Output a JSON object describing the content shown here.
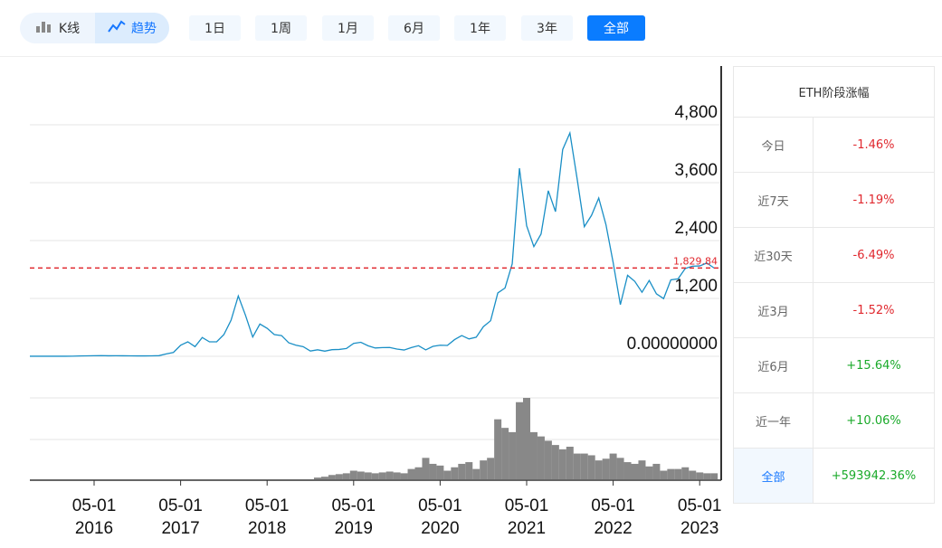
{
  "toolbar": {
    "view_toggle": [
      {
        "label": "K线",
        "icon": "candlestick-icon"
      },
      {
        "label": "趋势",
        "icon": "trend-line-icon",
        "active": true
      }
    ],
    "ranges": [
      {
        "label": "1日"
      },
      {
        "label": "1周"
      },
      {
        "label": "1月"
      },
      {
        "label": "6月"
      },
      {
        "label": "1年"
      },
      {
        "label": "3年"
      },
      {
        "label": "全部",
        "active": true
      }
    ],
    "accent": "#0a7cff"
  },
  "chart_data": {
    "type": "line",
    "y_ticks": [
      "4,800",
      "3,600",
      "2,400",
      "1,200",
      "0.00000000"
    ],
    "y_tick_values": [
      4800,
      3600,
      2400,
      1200,
      0
    ],
    "ylim": [
      0,
      5100
    ],
    "x_ticks": [
      {
        "md": "05-01",
        "year": "2016"
      },
      {
        "md": "05-01",
        "year": "2017"
      },
      {
        "md": "05-01",
        "year": "2018"
      },
      {
        "md": "05-01",
        "year": "2019"
      },
      {
        "md": "05-01",
        "year": "2020"
      },
      {
        "md": "05-01",
        "year": "2021"
      },
      {
        "md": "05-01",
        "year": "2022"
      },
      {
        "md": "05-01",
        "year": "2023"
      }
    ],
    "current_price_label": "1,829.84",
    "current_price": 1829.84,
    "line_color": "#1a8fc6",
    "price_line_color": "#e0282e",
    "volume_color": "#888888",
    "grid": true,
    "x": [
      "2015-08",
      "2015-09",
      "2015-10",
      "2015-11",
      "2015-12",
      "2016-01",
      "2016-02",
      "2016-03",
      "2016-04",
      "2016-05",
      "2016-06",
      "2016-07",
      "2016-08",
      "2016-09",
      "2016-10",
      "2016-11",
      "2016-12",
      "2017-01",
      "2017-02",
      "2017-03",
      "2017-04",
      "2017-05",
      "2017-06",
      "2017-07",
      "2017-08",
      "2017-09",
      "2017-10",
      "2017-11",
      "2017-12",
      "2018-01",
      "2018-02",
      "2018-03",
      "2018-04",
      "2018-05",
      "2018-06",
      "2018-07",
      "2018-08",
      "2018-09",
      "2018-10",
      "2018-11",
      "2018-12",
      "2019-01",
      "2019-02",
      "2019-03",
      "2019-04",
      "2019-05",
      "2019-06",
      "2019-07",
      "2019-08",
      "2019-09",
      "2019-10",
      "2019-11",
      "2019-12",
      "2020-01",
      "2020-02",
      "2020-03",
      "2020-04",
      "2020-05",
      "2020-06",
      "2020-07",
      "2020-08",
      "2020-09",
      "2020-10",
      "2020-11",
      "2020-12",
      "2021-01",
      "2021-02",
      "2021-03",
      "2021-04",
      "2021-05",
      "2021-06",
      "2021-07",
      "2021-08",
      "2021-09",
      "2021-10",
      "2021-11",
      "2021-12",
      "2022-01",
      "2022-02",
      "2022-03",
      "2022-04",
      "2022-05",
      "2022-06",
      "2022-07",
      "2022-08",
      "2022-09",
      "2022-10",
      "2022-11",
      "2022-12",
      "2023-01",
      "2023-02",
      "2023-03",
      "2023-04",
      "2023-05",
      "2023-06",
      "2023-07"
    ],
    "price": [
      1,
      1,
      1,
      1,
      1,
      1,
      3,
      7,
      10,
      12,
      14,
      11,
      12,
      11,
      10,
      8,
      8,
      10,
      13,
      50,
      80,
      230,
      300,
      200,
      390,
      300,
      300,
      450,
      750,
      1250,
      850,
      400,
      670,
      580,
      450,
      430,
      280,
      230,
      200,
      110,
      135,
      107,
      137,
      142,
      162,
      268,
      290,
      218,
      172,
      180,
      182,
      150,
      130,
      180,
      220,
      133,
      206,
      230,
      225,
      345,
      430,
      360,
      395,
      615,
      737,
      1314,
      1416,
      1918,
      3900,
      2706,
      2275,
      2536,
      3433,
      3000,
      4288,
      4631,
      3682,
      2688,
      2922,
      3282,
      2730,
      1942,
      1071,
      1679,
      1553,
      1328,
      1572,
      1295,
      1196,
      1585,
      1605,
      1821,
      1868,
      1874,
      1934,
      1830
    ],
    "volume": [
      0,
      0,
      0,
      0,
      0,
      0,
      0,
      0,
      0,
      0,
      0,
      0,
      0,
      0,
      0,
      0,
      0,
      0,
      0,
      0,
      0,
      0,
      0,
      0,
      0,
      0,
      0,
      0,
      0,
      0,
      0,
      0,
      0,
      0,
      0,
      0,
      0,
      0,
      0,
      0,
      2,
      3,
      5,
      6,
      7,
      10,
      9,
      8,
      7,
      8,
      9,
      8,
      7,
      12,
      14,
      25,
      18,
      16,
      10,
      14,
      18,
      20,
      12,
      22,
      25,
      70,
      60,
      55,
      90,
      95,
      55,
      50,
      45,
      40,
      35,
      38,
      30,
      30,
      28,
      22,
      24,
      30,
      25,
      20,
      18,
      22,
      15,
      18,
      10,
      12,
      12,
      14,
      10,
      8,
      7,
      7
    ]
  },
  "summary": {
    "title": "ETH阶段涨幅",
    "rows": [
      {
        "label": "今日",
        "value": "-1.46%",
        "dir": "down"
      },
      {
        "label": "近7天",
        "value": "-1.19%",
        "dir": "down"
      },
      {
        "label": "近30天",
        "value": "-6.49%",
        "dir": "down"
      },
      {
        "label": "近3月",
        "value": "-1.52%",
        "dir": "down"
      },
      {
        "label": "近6月",
        "value": "+15.64%",
        "dir": "up"
      },
      {
        "label": "近一年",
        "value": "+10.06%",
        "dir": "up"
      },
      {
        "label": "全部",
        "value": "+593942.36%",
        "dir": "up",
        "selected": true
      }
    ],
    "down_color": "#e0282e",
    "up_color": "#1aaa2a"
  }
}
